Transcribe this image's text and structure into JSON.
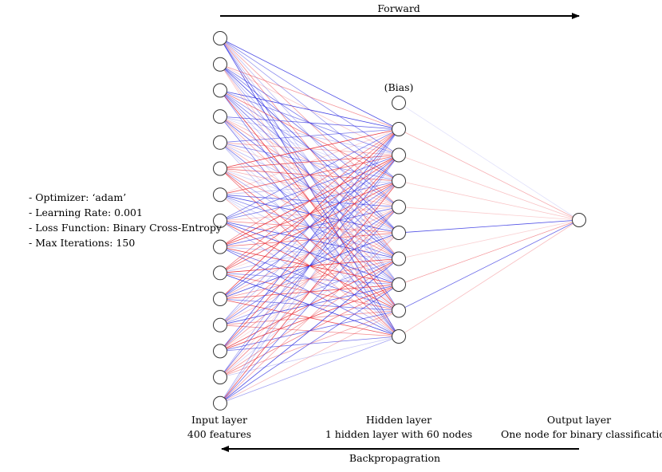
{
  "arrows": {
    "forward_label": "Forward",
    "backward_label": "Backpropagration"
  },
  "parameters": [
    "- Optimizer: ‘adam’",
    "- Learning Rate: 0.001",
    "- Loss Function: Binary Cross-Entropy",
    "- Max Iterations: 150"
  ],
  "layers": {
    "input": {
      "title": "Input layer",
      "subtitle": "400 features",
      "nodes_drawn": 15
    },
    "hidden": {
      "title": "Hidden layer",
      "subtitle": "1 hidden layer with 60 nodes",
      "nodes_drawn": 9,
      "bias_label": "(Bias)"
    },
    "output": {
      "title": "Output layer",
      "subtitle": "One node for binary classification",
      "nodes_drawn": 1
    }
  },
  "colors": {
    "positive_weight": "#e8202a",
    "negative_weight": "#2a2ae0",
    "node_stroke": "#333333",
    "arrow": "#000000"
  }
}
